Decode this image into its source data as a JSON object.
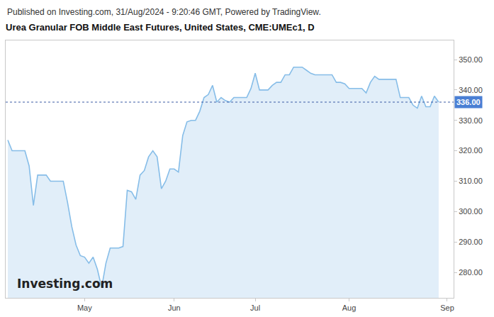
{
  "chart_data": {
    "type": "line",
    "title": "Urea Granular FOB Middle East Futures, United States, CME:UMEc1, D",
    "subtitle": "Published on Investing.com, 31/Aug/2024 - 9:20:46 GMT, Powered by TradingView.",
    "categories": [
      null,
      null,
      null,
      null,
      null,
      null,
      null,
      null,
      null,
      null,
      null,
      null,
      null,
      null,
      null,
      null,
      null,
      null,
      "May",
      null,
      null,
      null,
      null,
      null,
      null,
      null,
      null,
      null,
      null,
      null,
      null,
      null,
      null,
      null,
      null,
      null,
      null,
      null,
      null,
      "Jun",
      null,
      null,
      null,
      null,
      null,
      null,
      null,
      null,
      null,
      null,
      null,
      null,
      null,
      null,
      null,
      null,
      null,
      null,
      "Jul",
      null,
      null,
      null,
      null,
      null,
      null,
      null,
      null,
      null,
      null,
      null,
      null,
      null,
      null,
      null,
      null,
      null,
      null,
      null,
      null,
      null,
      "Aug",
      null,
      null,
      null,
      null,
      null,
      null,
      null,
      null,
      null,
      null,
      null,
      null,
      null,
      null,
      null,
      null,
      null,
      null,
      null,
      null,
      null,
      null,
      "Sep",
      null
    ],
    "values": [
      323.5,
      320,
      320,
      320,
      320,
      315,
      302,
      312,
      312,
      312,
      310,
      310,
      310,
      310,
      303,
      295,
      289,
      285.5,
      285,
      283,
      285,
      281,
      275,
      283,
      288,
      288,
      288,
      288.5,
      307,
      306.5,
      304,
      312,
      313.5,
      318,
      320,
      318,
      307.5,
      310,
      314,
      314,
      313,
      325,
      329.5,
      330,
      330,
      333,
      337.5,
      338.5,
      341.5,
      336,
      337.5,
      336.5,
      336,
      337.5,
      337.5,
      337.5,
      337.5,
      340.5,
      345.5,
      340,
      340,
      340,
      341.5,
      342.5,
      342.5,
      345,
      345,
      347.5,
      347.5,
      347.5,
      346.5,
      345.5,
      345,
      345,
      345,
      345,
      345,
      342.5,
      342.5,
      342,
      340.5,
      340.5,
      340.5,
      340.5,
      339,
      342.5,
      344.5,
      343.5,
      343.5,
      343.5,
      343.5,
      343.5,
      337.5,
      337.5,
      337.5,
      335,
      334,
      338,
      334.5,
      334.5,
      338,
      336,
      null,
      null,
      null
    ],
    "color": "#86bde8",
    "ylim": [
      271.6,
      356.3
    ],
    "yticks": [
      {
        "value": 280,
        "label": "280.00"
      },
      {
        "value": 290,
        "label": "290.00"
      },
      {
        "value": 300,
        "label": "300.00"
      },
      {
        "value": 310,
        "label": "310.00"
      },
      {
        "value": 320,
        "label": "320.00"
      },
      {
        "value": 330,
        "label": "330.00"
      },
      {
        "value": 340,
        "label": "340.00"
      },
      {
        "value": 350,
        "label": "350.00"
      }
    ],
    "grid": false,
    "annotations": [
      {
        "text": "336.00",
        "y": 336
      },
      {
        "text": "Investing.com"
      }
    ]
  }
}
